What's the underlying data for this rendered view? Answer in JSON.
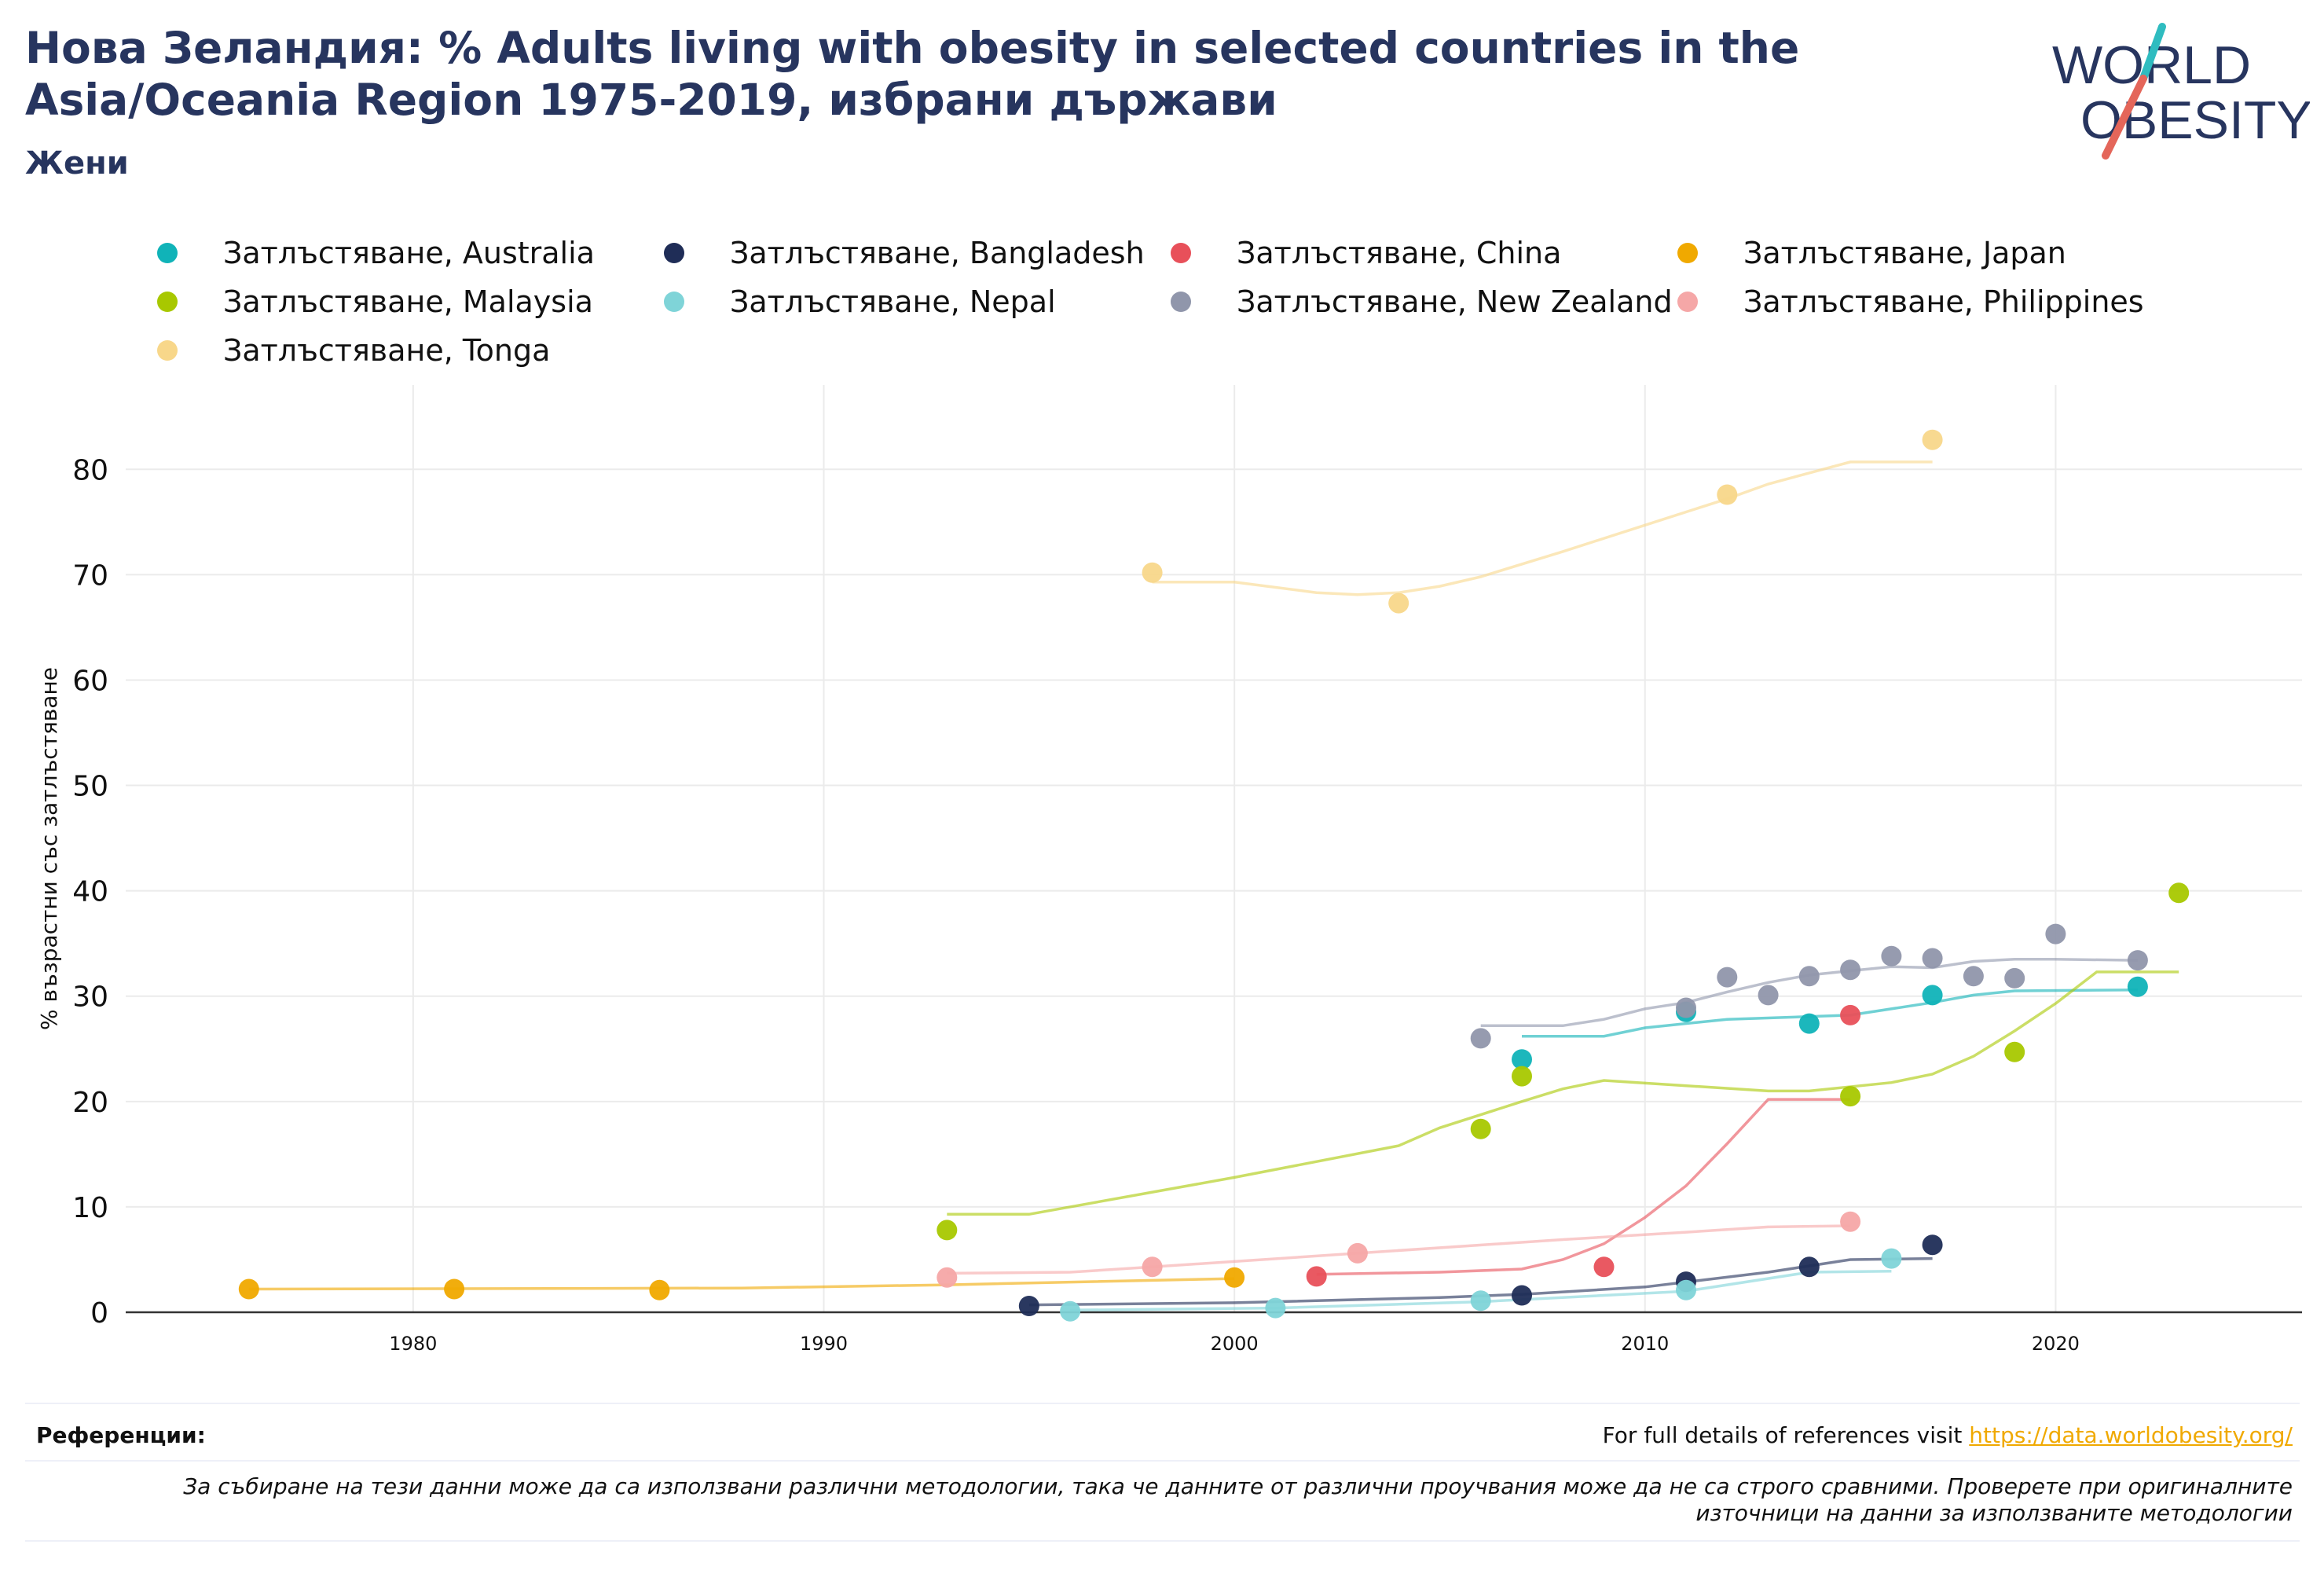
{
  "header": {
    "title": "Нова Зеландия: % Adults living with obesity in selected countries in the Asia/Oceania Region 1975-2019, избрани държави",
    "subtitle": "Жени"
  },
  "logo": {
    "line1": "WORLD",
    "line2": "OBESITY",
    "accent_teal": "#2fbcc0",
    "accent_red": "#e4665a",
    "text_color": "#27355f"
  },
  "footer": {
    "ref_label": "Референции:",
    "ref_text": "For full details of references visit ",
    "ref_link": "https://data.worldobesity.org/",
    "note": "За събиране на тези данни може да са използвани различни методологии, така че данните от различни проучвания може да не са строго сравними. Проверете при оригиналните източници на данни за използваните методологии"
  },
  "chart_data": {
    "type": "scatter",
    "title": "",
    "xlabel": "",
    "ylabel": "% възрастни със затлъстяване",
    "xlim": [
      1973,
      2026
    ],
    "ylim": [
      0,
      88
    ],
    "x_ticks": [
      1980,
      1990,
      2000,
      2010,
      2020
    ],
    "y_ticks": [
      0,
      10,
      20,
      30,
      40,
      50,
      60,
      70,
      80
    ],
    "grid": true,
    "legend_position": "top",
    "series": [
      {
        "name": "Затлъстяване, Australia",
        "color": "#10b3b8",
        "points": [
          [
            2007,
            24
          ],
          [
            2011,
            28.5
          ],
          [
            2014,
            27.4
          ],
          [
            2017,
            30.1
          ],
          [
            2022,
            30.9
          ]
        ],
        "trend": [
          [
            2007,
            26.2
          ],
          [
            2009,
            26.2
          ],
          [
            2010,
            27
          ],
          [
            2012,
            27.8
          ],
          [
            2015,
            28.2
          ],
          [
            2017,
            29.4
          ],
          [
            2018,
            30.1
          ],
          [
            2019,
            30.5
          ],
          [
            2022,
            30.6
          ]
        ]
      },
      {
        "name": "Затлъстяване, Bangladesh",
        "color": "#1f2d57",
        "points": [
          [
            1995,
            0.6
          ],
          [
            2007,
            1.6
          ],
          [
            2011,
            2.9
          ],
          [
            2014,
            4.3
          ],
          [
            2017,
            6.4
          ]
        ],
        "trend": [
          [
            1995,
            0.7
          ],
          [
            2000,
            0.9
          ],
          [
            2005,
            1.4
          ],
          [
            2007,
            1.7
          ],
          [
            2010,
            2.4
          ],
          [
            2013,
            3.8
          ],
          [
            2015,
            5
          ],
          [
            2017,
            5.1
          ]
        ]
      },
      {
        "name": "Затлъстяване, China",
        "color": "#e8505a",
        "points": [
          [
            2002,
            3.4
          ],
          [
            2009,
            4.3
          ],
          [
            2015,
            28.2
          ]
        ],
        "trend": [
          [
            2002,
            3.6
          ],
          [
            2005,
            3.8
          ],
          [
            2007,
            4.1
          ],
          [
            2008,
            5
          ],
          [
            2009,
            6.5
          ],
          [
            2010,
            9
          ],
          [
            2011,
            12
          ],
          [
            2012,
            16
          ],
          [
            2013,
            20.2
          ],
          [
            2015,
            20.2
          ]
        ]
      },
      {
        "name": "Затлъстяване, Japan",
        "color": "#f0a900",
        "points": [
          [
            1976,
            2.2
          ],
          [
            1981,
            2.2
          ],
          [
            1986,
            2.1
          ],
          [
            2000,
            3.3
          ]
        ],
        "trend": [
          [
            1976,
            2.2
          ],
          [
            1988,
            2.3
          ],
          [
            1993,
            2.6
          ],
          [
            2000,
            3.2
          ]
        ]
      },
      {
        "name": "Затлъстяване, Malaysia",
        "color": "#a8c800",
        "points": [
          [
            1993,
            7.8
          ],
          [
            2006,
            17.4
          ],
          [
            2007,
            22.4
          ],
          [
            2015,
            20.5
          ],
          [
            2019,
            24.7
          ],
          [
            2023,
            39.8
          ]
        ],
        "trend": [
          [
            1993,
            9.3
          ],
          [
            1995,
            9.3
          ],
          [
            2000,
            12.8
          ],
          [
            2004,
            15.8
          ],
          [
            2005,
            17.5
          ],
          [
            2007,
            20
          ],
          [
            2008,
            21.2
          ],
          [
            2009,
            22
          ],
          [
            2013,
            21
          ],
          [
            2014,
            21
          ],
          [
            2016,
            21.8
          ],
          [
            2017,
            22.6
          ],
          [
            2018,
            24.3
          ],
          [
            2019,
            26.7
          ],
          [
            2020,
            29.3
          ],
          [
            2021,
            32.3
          ],
          [
            2023,
            32.3
          ]
        ]
      },
      {
        "name": "Затлъстяване, Nepal",
        "color": "#7fd4d8",
        "points": [
          [
            1996,
            0.1
          ],
          [
            2001,
            0.4
          ],
          [
            2006,
            1.1
          ],
          [
            2011,
            2.1
          ],
          [
            2016,
            5.1
          ]
        ],
        "trend": [
          [
            1996,
            0.2
          ],
          [
            2001,
            0.4
          ],
          [
            2006,
            1
          ],
          [
            2011,
            2
          ],
          [
            2014,
            3.8
          ],
          [
            2016,
            3.9
          ]
        ]
      },
      {
        "name": "Затлъстяване, New Zealand",
        "color": "#9096ab",
        "points": [
          [
            2006,
            26
          ],
          [
            2011,
            28.9
          ],
          [
            2012,
            31.8
          ],
          [
            2013,
            30.1
          ],
          [
            2014,
            31.9
          ],
          [
            2015,
            32.5
          ],
          [
            2016,
            33.8
          ],
          [
            2017,
            33.6
          ],
          [
            2018,
            31.9
          ],
          [
            2019,
            31.7
          ],
          [
            2020,
            35.9
          ],
          [
            2022,
            33.4
          ]
        ],
        "trend": [
          [
            2006,
            27.2
          ],
          [
            2007,
            27.2
          ],
          [
            2008,
            27.2
          ],
          [
            2009,
            27.8
          ],
          [
            2010,
            28.8
          ],
          [
            2011,
            29.4
          ],
          [
            2012,
            30.4
          ],
          [
            2013,
            31.3
          ],
          [
            2014,
            32
          ],
          [
            2015,
            32.4
          ],
          [
            2016,
            32.8
          ],
          [
            2017,
            32.7
          ],
          [
            2018,
            33.3
          ],
          [
            2019,
            33.5
          ],
          [
            2020,
            33.5
          ],
          [
            2022,
            33.4
          ]
        ]
      },
      {
        "name": "Затлъстяване, Philippines",
        "color": "#f5a7a7",
        "points": [
          [
            1993,
            3.3
          ],
          [
            1998,
            4.3
          ],
          [
            2003,
            5.6
          ],
          [
            2015,
            8.6
          ]
        ],
        "trend": [
          [
            1993,
            3.7
          ],
          [
            1996,
            3.8
          ],
          [
            1998,
            4.3
          ],
          [
            2003,
            5.6
          ],
          [
            2008,
            6.9
          ],
          [
            2011,
            7.6
          ],
          [
            2013,
            8.1
          ],
          [
            2015,
            8.2
          ]
        ]
      },
      {
        "name": "Затлъстяване, Tonga",
        "color": "#f8d78a",
        "points": [
          [
            1998,
            70.2
          ],
          [
            2004,
            67.3
          ],
          [
            2012,
            77.6
          ],
          [
            2017,
            82.8
          ]
        ],
        "trend": [
          [
            1998,
            69.3
          ],
          [
            2000,
            69.3
          ],
          [
            2002,
            68.3
          ],
          [
            2003,
            68.1
          ],
          [
            2004,
            68.3
          ],
          [
            2005,
            68.9
          ],
          [
            2006,
            69.8
          ],
          [
            2008,
            72.2
          ],
          [
            2010,
            74.7
          ],
          [
            2012,
            77.2
          ],
          [
            2013,
            78.6
          ],
          [
            2015,
            80.7
          ],
          [
            2017,
            80.7
          ]
        ]
      }
    ]
  }
}
